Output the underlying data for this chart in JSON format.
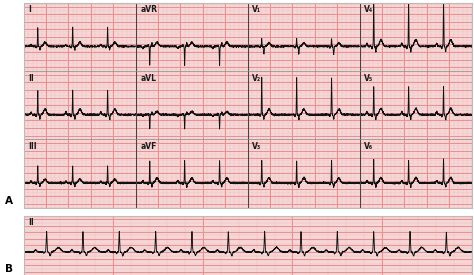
{
  "bg_outer": "#ffffff",
  "panel_A_bg": "#f8e0e0",
  "panel_B_bg": "#f8e0e0",
  "grid_minor_color": "#f0b8b8",
  "grid_major_color": "#e89090",
  "ecg_color": "#111111",
  "border_color": "#bbbbbb",
  "gap_color": "#ffffff",
  "labels": {
    "row1": [
      "I",
      "aVR",
      "V₁",
      "V₄"
    ],
    "row2": [
      "II",
      "aVL",
      "V₂",
      "V₅"
    ],
    "row3": [
      "III",
      "aVF",
      "V₃",
      "V₆"
    ],
    "panel_A": "A",
    "panel_B": "B",
    "rhythm": "II"
  }
}
